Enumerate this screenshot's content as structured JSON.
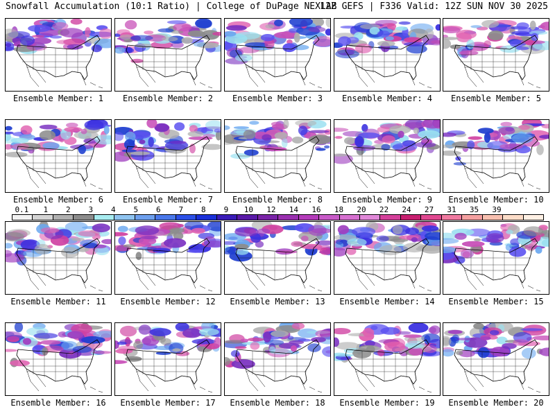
{
  "header": {
    "title_left": "Snowfall Accumulation (10:1 Ratio) | College of DuPage NEXLAB",
    "title_right": "12Z GEFS | F336 Valid: 12Z SUN NOV 30 2025"
  },
  "panels": [
    {
      "label": "Ensemble Member: 1"
    },
    {
      "label": "Ensemble Member: 2"
    },
    {
      "label": "Ensemble Member: 3"
    },
    {
      "label": "Ensemble Member: 4"
    },
    {
      "label": "Ensemble Member: 5"
    },
    {
      "label": "Ensemble Member: 6"
    },
    {
      "label": "Ensemble Member: 7"
    },
    {
      "label": "Ensemble Member: 8"
    },
    {
      "label": "Ensemble Member: 9"
    },
    {
      "label": "Ensemble Member: 10"
    },
    {
      "label": "Ensemble Member: 11"
    },
    {
      "label": "Ensemble Member: 12"
    },
    {
      "label": "Ensemble Member: 13"
    },
    {
      "label": "Ensemble Member: 14"
    },
    {
      "label": "Ensemble Member: 15"
    },
    {
      "label": "Ensemble Member: 16"
    },
    {
      "label": "Ensemble Member: 17"
    },
    {
      "label": "Ensemble Member: 18"
    },
    {
      "label": "Ensemble Member: 19"
    },
    {
      "label": "Ensemble Member: 20"
    }
  ],
  "colorbar": {
    "ticks": [
      "0.1",
      "1",
      "2",
      "3",
      "4",
      "5",
      "6",
      "7",
      "8",
      "9",
      "10",
      "12",
      "14",
      "16",
      "18",
      "20",
      "22",
      "24",
      "27",
      "31",
      "35",
      "39"
    ],
    "colors": [
      "#f2f2f2",
      "#d4d4d4",
      "#b0b0b0",
      "#8c8c8c",
      "#a8ecf0",
      "#8fc4f0",
      "#6ea0ee",
      "#4a78ea",
      "#2c50e6",
      "#1a30d8",
      "#3a1cb8",
      "#5a1aa8",
      "#7a24a8",
      "#9a30b0",
      "#b43cba",
      "#c85ac8",
      "#d670d0",
      "#e088d8",
      "#d4409a",
      "#c82070",
      "#e04890",
      "#f07aa0",
      "#f4a0a0",
      "#f8c0b0",
      "#fcdcc8",
      "#fff0e4"
    ]
  }
}
